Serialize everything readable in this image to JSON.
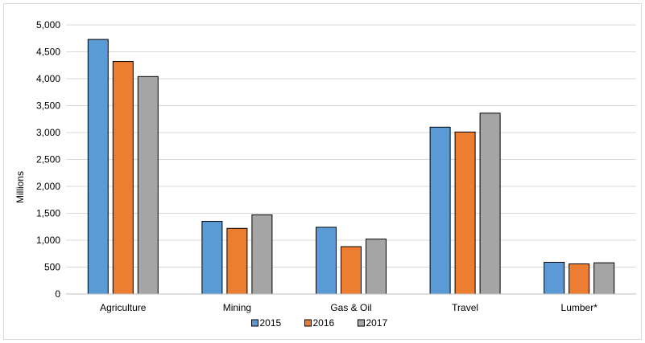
{
  "chart_data": {
    "type": "bar",
    "title": "",
    "xlabel": "",
    "ylabel": "Millions",
    "ylim": [
      0,
      5000
    ],
    "yticks": [
      0,
      500,
      1000,
      1500,
      2000,
      2500,
      3000,
      3500,
      4000,
      4500,
      5000
    ],
    "ytick_labels": [
      "0",
      "500",
      "1,000",
      "1,500",
      "2,000",
      "2,500",
      "3,000",
      "3,500",
      "4,000",
      "4,500",
      "5,000"
    ],
    "categories": [
      "Agriculture",
      "Mining",
      "Gas & Oil",
      "Travel",
      "Lumber*"
    ],
    "series": [
      {
        "name": "2015",
        "color": "#5b9bd5",
        "values": [
          4730,
          1350,
          1240,
          3100,
          590
        ]
      },
      {
        "name": "2016",
        "color": "#ed7d31",
        "values": [
          4320,
          1220,
          880,
          3010,
          560
        ]
      },
      {
        "name": "2017",
        "color": "#a5a5a5",
        "values": [
          4040,
          1470,
          1020,
          3360,
          580
        ]
      }
    ],
    "grid": true,
    "legend_position": "bottom"
  }
}
